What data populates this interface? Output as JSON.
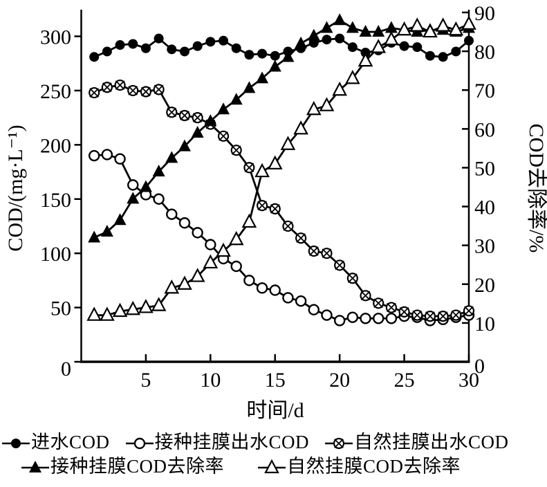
{
  "figure": {
    "background": "#ffffff",
    "ink_color": "#000000"
  },
  "chart_data": {
    "type": "line",
    "grid": false,
    "legend_position": "bottom",
    "x_axis": {
      "label": "时间/d",
      "min": 0,
      "max": 30,
      "major_ticks": [
        5,
        10,
        15,
        20,
        25,
        30
      ]
    },
    "y_left": {
      "label": "COD/(mg·L⁻¹)",
      "min": 0,
      "max": 322,
      "major_ticks": [
        0,
        50,
        100,
        150,
        200,
        250,
        300
      ]
    },
    "y_right": {
      "label": "COD去除率/%",
      "min": 0,
      "max": 90,
      "major_ticks": [
        0,
        10,
        20,
        30,
        40,
        50,
        60,
        70,
        80,
        90
      ]
    },
    "x": [
      1,
      2,
      3,
      4,
      5,
      6,
      7,
      8,
      9,
      10,
      11,
      12,
      13,
      14,
      15,
      16,
      17,
      18,
      19,
      20,
      21,
      22,
      23,
      24,
      25,
      26,
      27,
      28,
      29,
      30
    ],
    "series": [
      {
        "name": "influent-cod",
        "label": "进水COD",
        "marker": "filled-circle",
        "axis": "left",
        "values": [
          281,
          286,
          292,
          293,
          289,
          298,
          288,
          286,
          291,
          295,
          296,
          289,
          283,
          284,
          282,
          286,
          289,
          294,
          297,
          298,
          290,
          285,
          287,
          294,
          291,
          290,
          282,
          281,
          286,
          296
        ]
      },
      {
        "name": "inoculated-effluent-cod",
        "label": "接种挂膜出水COD",
        "marker": "open-circle",
        "axis": "left",
        "values": [
          190,
          191,
          187,
          163,
          154,
          150,
          136,
          128,
          119,
          108,
          95,
          88,
          75,
          68,
          66,
          59,
          56,
          48,
          43,
          38,
          41,
          40,
          40,
          40,
          42,
          41,
          38,
          39,
          41,
          43
        ]
      },
      {
        "name": "natural-effluent-cod",
        "label": "自然挂膜出水COD",
        "marker": "circle-x",
        "axis": "left",
        "values": [
          248,
          253,
          255,
          250,
          249,
          251,
          230,
          227,
          225,
          219,
          208,
          195,
          179,
          144,
          141,
          125,
          114,
          102,
          100,
          89,
          77,
          61,
          54,
          50,
          46,
          43,
          42,
          42,
          43,
          47
        ]
      },
      {
        "name": "inoculated-removal-rate",
        "label": "接种挂膜COD去除率",
        "marker": "filled-triangle",
        "axis": "right",
        "values": [
          32,
          33.5,
          36.5,
          42,
          45,
          49,
          52.5,
          55.5,
          59,
          62,
          65,
          67.5,
          70.5,
          73,
          76,
          78.5,
          82,
          84,
          86,
          88,
          86,
          85,
          85,
          86,
          85.5,
          85,
          85.5,
          85.5,
          85,
          86
        ]
      },
      {
        "name": "natural-removal-rate",
        "label": "自然挂膜COD去除率",
        "marker": "open-triangle",
        "axis": "right",
        "values": [
          12,
          12,
          13,
          13.5,
          14,
          14.5,
          19,
          20,
          22,
          25.5,
          28.5,
          31.5,
          36,
          49,
          51,
          56,
          60,
          65,
          66,
          70,
          73,
          77.5,
          81,
          83,
          85.5,
          86.5,
          85,
          86.5,
          85.5,
          87
        ]
      }
    ],
    "legend_rows": [
      [
        "进水COD",
        "接种挂膜出水COD",
        "自然挂膜出水COD"
      ],
      [
        "接种挂膜COD去除率",
        "自然挂膜COD去除率"
      ]
    ]
  }
}
